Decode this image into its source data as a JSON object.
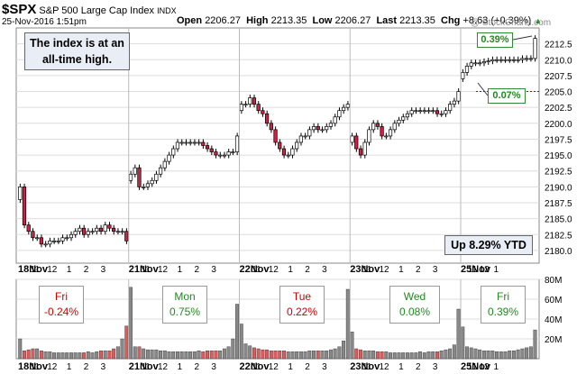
{
  "header": {
    "symbol": "$SPX",
    "name": "S&P 500 Large Cap Index",
    "exchange": "INDX",
    "datetime": "25-Nov-2016 1:51pm",
    "open_label": "Open",
    "open": "2206.27",
    "high_label": "High",
    "high": "2213.35",
    "low_label": "Low",
    "low": "2206.27",
    "last_label": "Last",
    "last": "2213.35",
    "chg_label": "Chg",
    "chg": "+8.63 (+0.39%)",
    "watermark": "@ StockCharts.com"
  },
  "annotations": {
    "all_time_high": "The index is at an all-time high.",
    "ytd": "Up 8.29% YTD",
    "gap_up": "0.39%",
    "gap_mid": "0.07%"
  },
  "day_boxes": [
    {
      "day": "Fri",
      "pct": "-0.24%",
      "color": "#cc0000"
    },
    {
      "day": "Mon",
      "pct": "0.75%",
      "color": "#1f8a1f"
    },
    {
      "day": "Tue",
      "pct": "0.22%",
      "color": "#cc0000"
    },
    {
      "day": "Wed",
      "pct": "0.08%",
      "color": "#1f8a1f"
    },
    {
      "day": "Fri",
      "pct": "0.39%",
      "color": "#1f8a1f"
    }
  ],
  "colors": {
    "up": "#ffffff",
    "down": "#cc2244",
    "vol_up": "#888888",
    "vol_down": "#e05a5a"
  },
  "chart_data": [
    {
      "type": "candlestick",
      "title": "$SPX S&P 500 Large Cap Index INDX",
      "ylim": [
        2178,
        2215
      ],
      "y_ticks": [
        "2212.5",
        "2210.0",
        "2207.5",
        "2205.0",
        "2202.5",
        "2200.0",
        "2197.5",
        "2195.0",
        "2192.5",
        "2190.0",
        "2187.5",
        "2185.0",
        "2182.5",
        "2180.0"
      ],
      "x_tick_labels": [
        "18Nov",
        "11",
        "12",
        "1",
        "2",
        "3",
        "21Nov",
        "11",
        "12",
        "1",
        "2",
        "3",
        "22Nov",
        "11",
        "12",
        "1",
        "2",
        "3",
        "23Nov",
        "11",
        "12",
        "1",
        "2",
        "3",
        "25Nov",
        "11",
        "12",
        "1"
      ],
      "grid": true,
      "reference_line": 2205.0,
      "segments": [
        {
          "session": "18Nov",
          "closes": [
            2190,
            2184,
            2183,
            2182,
            2182,
            2181,
            2181,
            2181.5,
            2181.5,
            2181.5,
            2182,
            2182,
            2182.5,
            2183,
            2183.5,
            2182.5,
            2183,
            2183,
            2183.5,
            2183,
            2184,
            2183.5,
            2183,
            2183,
            2183,
            2181.5
          ]
        },
        {
          "session": "21Nov",
          "closes": [
            2192,
            2193,
            2190,
            2190,
            2190.5,
            2191,
            2192,
            2193,
            2194,
            2195,
            2196,
            2197,
            2197,
            2197,
            2197,
            2197,
            2197,
            2196.5,
            2196,
            2195.5,
            2195,
            2195,
            2195,
            2195.5,
            2195.5,
            2198
          ]
        },
        {
          "session": "22Nov",
          "closes": [
            2203,
            2203,
            2204,
            2203,
            2202,
            2201.5,
            2200,
            2199,
            2197,
            2196,
            2195,
            2195,
            2196,
            2197,
            2198,
            2198,
            2199,
            2199.5,
            2199,
            2199,
            2199.5,
            2200,
            2201,
            2202,
            2202.5,
            2203
          ]
        },
        {
          "session": "23Nov",
          "closes": [
            2198,
            2196,
            2195,
            2197,
            2199,
            2200,
            2199.5,
            2198,
            2198,
            2199,
            2200,
            2200.5,
            2201,
            2201.5,
            2202,
            2202,
            2202,
            2202,
            2202,
            2202,
            2201.5,
            2201.5,
            2202,
            2203,
            2203.5,
            2205
          ]
        },
        {
          "session": "25Nov",
          "closes": [
            2208,
            2209,
            2209.5,
            2209.5,
            2209.5,
            2209.7,
            2209.8,
            2210,
            2210,
            2210,
            2210,
            2210,
            2210,
            2210,
            2210.2,
            2210.2,
            2210.2,
            2213.35
          ]
        }
      ]
    },
    {
      "type": "bar",
      "title": "Volume",
      "ylim": [
        0,
        80
      ],
      "ylabel": "",
      "y_ticks": [
        "80M",
        "60M",
        "40M",
        "20M"
      ],
      "segments": [
        {
          "session": "18Nov",
          "values": [
            20,
            8,
            9,
            10,
            10,
            8,
            7,
            7,
            6,
            6,
            6,
            6,
            6,
            6,
            6,
            6,
            7,
            6,
            7,
            8,
            8,
            8,
            10,
            12,
            20,
            33
          ]
        },
        {
          "session": "21Nov",
          "values": [
            72,
            12,
            12,
            10,
            9,
            9,
            9,
            8,
            8,
            7,
            7,
            7,
            7,
            7,
            7,
            7,
            8,
            7,
            8,
            8,
            8,
            8,
            10,
            12,
            20,
            55
          ]
        },
        {
          "session": "22Nov",
          "values": [
            35,
            15,
            13,
            11,
            10,
            9,
            9,
            8,
            8,
            8,
            8,
            7,
            7,
            7,
            7,
            7,
            8,
            8,
            8,
            8,
            8,
            9,
            10,
            12,
            18,
            70
          ]
        },
        {
          "session": "23Nov",
          "values": [
            27,
            10,
            9,
            8,
            8,
            8,
            7,
            7,
            7,
            6,
            6,
            6,
            6,
            6,
            6,
            6,
            7,
            6,
            7,
            7,
            7,
            8,
            9,
            10,
            14,
            50
          ]
        },
        {
          "session": "25Nov",
          "values": [
            32,
            12,
            11,
            10,
            9,
            8,
            8,
            8,
            7,
            7,
            7,
            8,
            8,
            9,
            10,
            11,
            12,
            29
          ]
        }
      ]
    }
  ]
}
